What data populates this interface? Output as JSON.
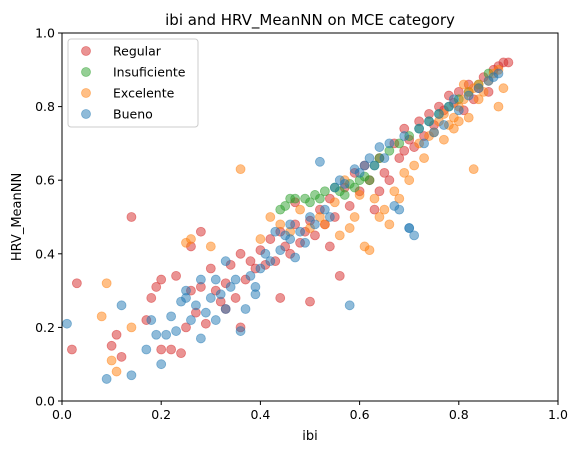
{
  "chart_data": {
    "type": "scatter",
    "title": "ibi and HRV_MeanNN on MCE category",
    "xlabel": "ibi",
    "ylabel": "HRV_MeanNN",
    "xlim": [
      0.0,
      1.0
    ],
    "ylim": [
      0.0,
      1.0
    ],
    "xticks": [
      "0.0",
      "0.2",
      "0.4",
      "0.6",
      "0.8",
      "1.0"
    ],
    "yticks": [
      "0.0",
      "0.2",
      "0.4",
      "0.6",
      "0.8",
      "1.0"
    ],
    "grid": false,
    "legend_position": "top-left",
    "marker_opacity": 0.5,
    "series": [
      {
        "name": "Regular",
        "color": "#d62728",
        "points": [
          [
            0.02,
            0.14
          ],
          [
            0.03,
            0.32
          ],
          [
            0.1,
            0.15
          ],
          [
            0.11,
            0.18
          ],
          [
            0.12,
            0.12
          ],
          [
            0.14,
            0.5
          ],
          [
            0.17,
            0.22
          ],
          [
            0.18,
            0.28
          ],
          [
            0.19,
            0.31
          ],
          [
            0.2,
            0.33
          ],
          [
            0.2,
            0.14
          ],
          [
            0.22,
            0.14
          ],
          [
            0.23,
            0.34
          ],
          [
            0.24,
            0.13
          ],
          [
            0.25,
            0.2
          ],
          [
            0.26,
            0.3
          ],
          [
            0.27,
            0.24
          ],
          [
            0.28,
            0.46
          ],
          [
            0.28,
            0.31
          ],
          [
            0.29,
            0.21
          ],
          [
            0.3,
            0.36
          ],
          [
            0.31,
            0.3
          ],
          [
            0.32,
            0.27
          ],
          [
            0.33,
            0.32
          ],
          [
            0.34,
            0.37
          ],
          [
            0.35,
            0.28
          ],
          [
            0.36,
            0.2
          ],
          [
            0.36,
            0.4
          ],
          [
            0.37,
            0.33
          ],
          [
            0.38,
            0.38
          ],
          [
            0.39,
            0.36
          ],
          [
            0.4,
            0.41
          ],
          [
            0.41,
            0.37
          ],
          [
            0.42,
            0.44
          ],
          [
            0.43,
            0.38
          ],
          [
            0.44,
            0.46
          ],
          [
            0.44,
            0.28
          ],
          [
            0.45,
            0.42
          ],
          [
            0.46,
            0.4
          ],
          [
            0.47,
            0.48
          ],
          [
            0.48,
            0.43
          ],
          [
            0.49,
            0.46
          ],
          [
            0.5,
            0.27
          ],
          [
            0.5,
            0.49
          ],
          [
            0.51,
            0.45
          ],
          [
            0.52,
            0.52
          ],
          [
            0.53,
            0.48
          ],
          [
            0.54,
            0.55
          ],
          [
            0.55,
            0.5
          ],
          [
            0.56,
            0.34
          ],
          [
            0.57,
            0.58
          ],
          [
            0.58,
            0.53
          ],
          [
            0.59,
            0.62
          ],
          [
            0.6,
            0.57
          ],
          [
            0.61,
            0.64
          ],
          [
            0.62,
            0.6
          ],
          [
            0.63,
            0.52
          ],
          [
            0.64,
            0.66
          ],
          [
            0.65,
            0.62
          ],
          [
            0.66,
            0.6
          ],
          [
            0.67,
            0.7
          ],
          [
            0.68,
            0.66
          ],
          [
            0.69,
            0.74
          ],
          [
            0.7,
            0.71
          ],
          [
            0.71,
            0.69
          ],
          [
            0.72,
            0.76
          ],
          [
            0.73,
            0.72
          ],
          [
            0.74,
            0.78
          ],
          [
            0.75,
            0.75
          ],
          [
            0.76,
            0.8
          ],
          [
            0.77,
            0.79
          ],
          [
            0.78,
            0.83
          ],
          [
            0.79,
            0.81
          ],
          [
            0.8,
            0.84
          ],
          [
            0.81,
            0.79
          ],
          [
            0.82,
            0.86
          ],
          [
            0.83,
            0.82
          ],
          [
            0.84,
            0.85
          ],
          [
            0.85,
            0.88
          ],
          [
            0.86,
            0.84
          ],
          [
            0.87,
            0.9
          ],
          [
            0.88,
            0.91
          ],
          [
            0.89,
            0.92
          ],
          [
            0.9,
            0.92
          ],
          [
            0.69,
            0.68
          ],
          [
            0.64,
            0.57
          ],
          [
            0.47,
            0.54
          ],
          [
            0.54,
            0.42
          ],
          [
            0.33,
            0.25
          ],
          [
            0.26,
            0.42
          ]
        ]
      },
      {
        "name": "Insuficiente",
        "color": "#2ca02c",
        "points": [
          [
            0.44,
            0.52
          ],
          [
            0.45,
            0.53
          ],
          [
            0.46,
            0.55
          ],
          [
            0.47,
            0.55
          ],
          [
            0.49,
            0.55
          ],
          [
            0.5,
            0.54
          ],
          [
            0.51,
            0.56
          ],
          [
            0.52,
            0.55
          ],
          [
            0.53,
            0.57
          ],
          [
            0.55,
            0.58
          ],
          [
            0.56,
            0.57
          ],
          [
            0.57,
            0.56
          ],
          [
            0.58,
            0.59
          ],
          [
            0.59,
            0.58
          ],
          [
            0.6,
            0.6
          ],
          [
            0.61,
            0.61
          ],
          [
            0.62,
            0.6
          ],
          [
            0.63,
            0.64
          ],
          [
            0.64,
            0.66
          ],
          [
            0.66,
            0.68
          ],
          [
            0.68,
            0.7
          ],
          [
            0.7,
            0.72
          ],
          [
            0.72,
            0.74
          ],
          [
            0.74,
            0.76
          ],
          [
            0.76,
            0.78
          ],
          [
            0.78,
            0.8
          ],
          [
            0.8,
            0.82
          ],
          [
            0.82,
            0.84
          ],
          [
            0.84,
            0.86
          ],
          [
            0.86,
            0.89
          ]
        ]
      },
      {
        "name": "Excelente",
        "color": "#ff7f0e",
        "points": [
          [
            0.08,
            0.23
          ],
          [
            0.09,
            0.32
          ],
          [
            0.1,
            0.11
          ],
          [
            0.11,
            0.08
          ],
          [
            0.14,
            0.2
          ],
          [
            0.25,
            0.43
          ],
          [
            0.26,
            0.44
          ],
          [
            0.3,
            0.42
          ],
          [
            0.36,
            0.63
          ],
          [
            0.4,
            0.44
          ],
          [
            0.42,
            0.5
          ],
          [
            0.44,
            0.48
          ],
          [
            0.46,
            0.46
          ],
          [
            0.48,
            0.52
          ],
          [
            0.5,
            0.47
          ],
          [
            0.52,
            0.5
          ],
          [
            0.53,
            0.48
          ],
          [
            0.55,
            0.54
          ],
          [
            0.56,
            0.45
          ],
          [
            0.57,
            0.6
          ],
          [
            0.58,
            0.47
          ],
          [
            0.59,
            0.5
          ],
          [
            0.6,
            0.56
          ],
          [
            0.61,
            0.42
          ],
          [
            0.62,
            0.41
          ],
          [
            0.63,
            0.55
          ],
          [
            0.64,
            0.5
          ],
          [
            0.65,
            0.52
          ],
          [
            0.66,
            0.48
          ],
          [
            0.67,
            0.57
          ],
          [
            0.68,
            0.55
          ],
          [
            0.69,
            0.62
          ],
          [
            0.7,
            0.6
          ],
          [
            0.71,
            0.64
          ],
          [
            0.72,
            0.7
          ],
          [
            0.73,
            0.66
          ],
          [
            0.74,
            0.72
          ],
          [
            0.75,
            0.73
          ],
          [
            0.76,
            0.76
          ],
          [
            0.77,
            0.71
          ],
          [
            0.78,
            0.75
          ],
          [
            0.79,
            0.77
          ],
          [
            0.8,
            0.8
          ],
          [
            0.81,
            0.82
          ],
          [
            0.82,
            0.84
          ],
          [
            0.83,
            0.63
          ],
          [
            0.84,
            0.86
          ],
          [
            0.85,
            0.84
          ],
          [
            0.86,
            0.87
          ],
          [
            0.87,
            0.89
          ],
          [
            0.88,
            0.9
          ],
          [
            0.89,
            0.85
          ],
          [
            0.82,
            0.77
          ],
          [
            0.8,
            0.76
          ],
          [
            0.77,
            0.78
          ],
          [
            0.84,
            0.82
          ],
          [
            0.88,
            0.8
          ],
          [
            0.83,
            0.85
          ],
          [
            0.81,
            0.86
          ],
          [
            0.79,
            0.74
          ]
        ]
      },
      {
        "name": "Bueno",
        "color": "#1f77b4",
        "points": [
          [
            0.01,
            0.21
          ],
          [
            0.09,
            0.06
          ],
          [
            0.12,
            0.26
          ],
          [
            0.14,
            0.07
          ],
          [
            0.17,
            0.14
          ],
          [
            0.18,
            0.22
          ],
          [
            0.19,
            0.18
          ],
          [
            0.2,
            0.1
          ],
          [
            0.21,
            0.18
          ],
          [
            0.22,
            0.23
          ],
          [
            0.23,
            0.19
          ],
          [
            0.24,
            0.27
          ],
          [
            0.25,
            0.3
          ],
          [
            0.26,
            0.22
          ],
          [
            0.27,
            0.26
          ],
          [
            0.28,
            0.17
          ],
          [
            0.29,
            0.24
          ],
          [
            0.3,
            0.28
          ],
          [
            0.31,
            0.22
          ],
          [
            0.32,
            0.29
          ],
          [
            0.33,
            0.25
          ],
          [
            0.34,
            0.31
          ],
          [
            0.35,
            0.33
          ],
          [
            0.36,
            0.19
          ],
          [
            0.37,
            0.25
          ],
          [
            0.38,
            0.34
          ],
          [
            0.39,
            0.31
          ],
          [
            0.4,
            0.36
          ],
          [
            0.41,
            0.4
          ],
          [
            0.42,
            0.38
          ],
          [
            0.43,
            0.46
          ],
          [
            0.44,
            0.41
          ],
          [
            0.45,
            0.45
          ],
          [
            0.46,
            0.44
          ],
          [
            0.47,
            0.39
          ],
          [
            0.48,
            0.46
          ],
          [
            0.49,
            0.43
          ],
          [
            0.5,
            0.5
          ],
          [
            0.51,
            0.48
          ],
          [
            0.52,
            0.65
          ],
          [
            0.53,
            0.52
          ],
          [
            0.54,
            0.5
          ],
          [
            0.55,
            0.58
          ],
          [
            0.56,
            0.6
          ],
          [
            0.57,
            0.59
          ],
          [
            0.58,
            0.26
          ],
          [
            0.59,
            0.63
          ],
          [
            0.6,
            0.62
          ],
          [
            0.61,
            0.64
          ],
          [
            0.62,
            0.66
          ],
          [
            0.63,
            0.64
          ],
          [
            0.64,
            0.69
          ],
          [
            0.65,
            0.66
          ],
          [
            0.66,
            0.7
          ],
          [
            0.67,
            0.53
          ],
          [
            0.68,
            0.52
          ],
          [
            0.69,
            0.72
          ],
          [
            0.7,
            0.47
          ],
          [
            0.71,
            0.45
          ],
          [
            0.72,
            0.74
          ],
          [
            0.73,
            0.7
          ],
          [
            0.74,
            0.76
          ],
          [
            0.75,
            0.73
          ],
          [
            0.76,
            0.78
          ],
          [
            0.77,
            0.75
          ],
          [
            0.78,
            0.8
          ],
          [
            0.79,
            0.82
          ],
          [
            0.8,
            0.79
          ],
          [
            0.82,
            0.83
          ],
          [
            0.84,
            0.85
          ],
          [
            0.86,
            0.87
          ],
          [
            0.87,
            0.88
          ],
          [
            0.88,
            0.89
          ],
          [
            0.7,
            0.47
          ],
          [
            0.46,
            0.48
          ],
          [
            0.33,
            0.38
          ],
          [
            0.28,
            0.33
          ],
          [
            0.25,
            0.28
          ],
          [
            0.31,
            0.33
          ],
          [
            0.39,
            0.29
          ]
        ]
      }
    ]
  }
}
